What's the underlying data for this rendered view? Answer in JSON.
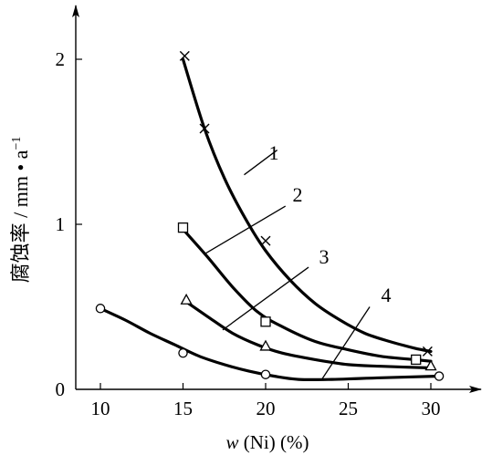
{
  "chart_data": {
    "type": "line",
    "title": "",
    "xlabel_parts": {
      "italic": "w",
      "rest": " (Ni) (%)"
    },
    "ylabel": "腐蚀率 / mm • a",
    "ylabel_sup": "−1",
    "x_ticks": [
      "10",
      "15",
      "20",
      "25",
      "30"
    ],
    "y_ticks": [
      "0",
      "1",
      "2"
    ],
    "xlim": [
      8,
      32
    ],
    "ylim": [
      0,
      2.3
    ],
    "grid": false,
    "legend": "none",
    "series": [
      {
        "label": "1",
        "marker": "x",
        "points": [
          [
            15.1,
            2.02
          ],
          [
            16.3,
            1.58
          ],
          [
            20.0,
            0.9
          ],
          [
            29.8,
            0.23
          ]
        ],
        "curve": [
          [
            15.0,
            2.0
          ],
          [
            16.3,
            1.58
          ],
          [
            17.5,
            1.28
          ],
          [
            18.8,
            1.03
          ],
          [
            20.0,
            0.84
          ],
          [
            21.5,
            0.66
          ],
          [
            23.0,
            0.52
          ],
          [
            24.5,
            0.42
          ],
          [
            26.0,
            0.34
          ],
          [
            27.5,
            0.29
          ],
          [
            29.0,
            0.25
          ],
          [
            30.0,
            0.23
          ]
        ]
      },
      {
        "label": "2",
        "marker": "square",
        "points": [
          [
            15.0,
            0.98
          ],
          [
            20.0,
            0.41
          ],
          [
            29.1,
            0.18
          ]
        ],
        "curve": [
          [
            15.0,
            0.97
          ],
          [
            16.5,
            0.8
          ],
          [
            18.0,
            0.62
          ],
          [
            19.5,
            0.47
          ],
          [
            21.0,
            0.38
          ],
          [
            23.0,
            0.29
          ],
          [
            25.0,
            0.24
          ],
          [
            27.0,
            0.2
          ],
          [
            29.0,
            0.18
          ],
          [
            30.0,
            0.17
          ]
        ]
      },
      {
        "label": "3",
        "marker": "triangle",
        "points": [
          [
            15.2,
            0.54
          ],
          [
            20.0,
            0.26
          ],
          [
            30.0,
            0.14
          ]
        ],
        "curve": [
          [
            15.2,
            0.53
          ],
          [
            16.5,
            0.44
          ],
          [
            18.0,
            0.34
          ],
          [
            19.5,
            0.27
          ],
          [
            21.0,
            0.22
          ],
          [
            23.0,
            0.18
          ],
          [
            25.0,
            0.15
          ],
          [
            27.0,
            0.14
          ],
          [
            30.0,
            0.13
          ]
        ]
      },
      {
        "label": "4",
        "marker": "circle",
        "points": [
          [
            10.0,
            0.49
          ],
          [
            15.0,
            0.22
          ],
          [
            20.0,
            0.09
          ],
          [
            30.5,
            0.08
          ]
        ],
        "curve": [
          [
            10.0,
            0.49
          ],
          [
            11.5,
            0.42
          ],
          [
            13.0,
            0.34
          ],
          [
            14.5,
            0.27
          ],
          [
            16.0,
            0.2
          ],
          [
            17.5,
            0.15
          ],
          [
            19.0,
            0.11
          ],
          [
            20.5,
            0.08
          ],
          [
            22.0,
            0.06
          ],
          [
            24.0,
            0.06
          ],
          [
            27.0,
            0.07
          ],
          [
            30.5,
            0.08
          ]
        ]
      }
    ]
  }
}
